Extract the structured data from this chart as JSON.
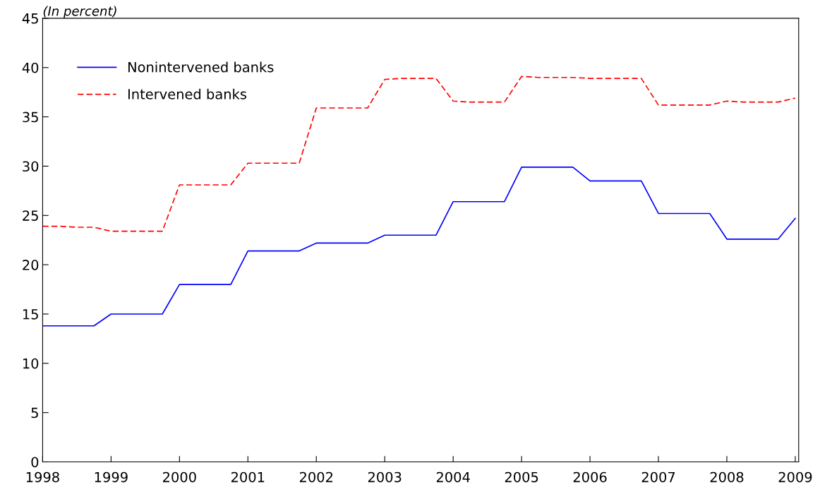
{
  "chart_data": {
    "type": "line",
    "title": "(In percent)",
    "x": [
      1998,
      1998.25,
      1998.5,
      1998.75,
      1999,
      1999.25,
      1999.5,
      1999.75,
      2000,
      2000.25,
      2000.5,
      2000.75,
      2001,
      2001.25,
      2001.5,
      2001.75,
      2002,
      2002.25,
      2002.5,
      2002.75,
      2003,
      2003.25,
      2003.5,
      2003.75,
      2004,
      2004.25,
      2004.5,
      2004.75,
      2005,
      2005.25,
      2005.5,
      2005.75,
      2006,
      2006.25,
      2006.5,
      2006.75,
      2007,
      2007.25,
      2007.5,
      2007.75,
      2008,
      2008.25,
      2008.5,
      2008.75,
      2009
    ],
    "series": [
      {
        "name": "Nonintervened banks",
        "color": "#0000ff",
        "line_style": "solid",
        "values": [
          13.8,
          13.8,
          13.8,
          13.8,
          15.0,
          15.0,
          15.0,
          15.0,
          18.0,
          18.0,
          18.0,
          18.0,
          21.4,
          21.4,
          21.4,
          21.4,
          22.2,
          22.2,
          22.2,
          22.2,
          23.0,
          23.0,
          23.0,
          23.0,
          26.4,
          26.4,
          26.4,
          26.4,
          29.9,
          29.9,
          29.9,
          29.9,
          28.5,
          28.5,
          28.5,
          28.5,
          25.2,
          25.2,
          25.2,
          25.2,
          22.6,
          22.6,
          22.6,
          22.6,
          24.7
        ]
      },
      {
        "name": "Intervened banks",
        "color": "#ff0000",
        "line_style": "dashed",
        "values": [
          23.9,
          23.9,
          23.8,
          23.8,
          23.4,
          23.4,
          23.4,
          23.4,
          28.1,
          28.1,
          28.1,
          28.1,
          30.3,
          30.3,
          30.3,
          30.3,
          35.9,
          35.9,
          35.9,
          35.9,
          38.8,
          38.9,
          38.9,
          38.9,
          36.6,
          36.5,
          36.5,
          36.5,
          39.1,
          39.0,
          39.0,
          39.0,
          38.9,
          38.9,
          38.9,
          38.9,
          36.2,
          36.2,
          36.2,
          36.2,
          36.6,
          36.5,
          36.5,
          36.5,
          36.9
        ]
      }
    ],
    "xlim": [
      1998,
      2009.05
    ],
    "xticks": [
      1998,
      1999,
      2000,
      2001,
      2002,
      2003,
      2004,
      2005,
      2006,
      2007,
      2008,
      2009
    ],
    "ylim": [
      0,
      45
    ],
    "yticks": [
      0,
      5,
      10,
      15,
      20,
      25,
      30,
      35,
      40,
      45
    ],
    "grid": false,
    "legend": "top left",
    "marker": "none"
  }
}
